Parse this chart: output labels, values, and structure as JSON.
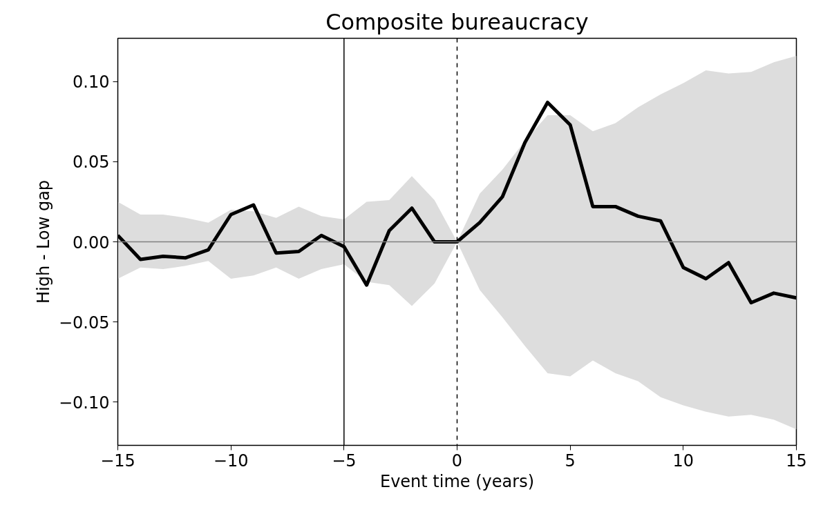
{
  "chart_data": {
    "type": "line",
    "title": "Composite bureaucracy",
    "xlabel": "Event time (years)",
    "ylabel": "High - Low gap",
    "x": [
      -15,
      -14,
      -13,
      -12,
      -11,
      -10,
      -9,
      -8,
      -7,
      -6,
      -5,
      -4,
      -3,
      -2,
      -1,
      0,
      1,
      2,
      3,
      4,
      5,
      6,
      7,
      8,
      9,
      10,
      11,
      12,
      13,
      14,
      15
    ],
    "series": [
      {
        "color": "#000000",
        "values": [
          0.004,
          -0.011,
          -0.009,
          -0.01,
          -0.005,
          0.017,
          0.023,
          -0.007,
          -0.006,
          0.004,
          -0.003,
          -0.027,
          0.007,
          0.021,
          0.0,
          0.0,
          0.012,
          0.028,
          0.062,
          0.087,
          0.073,
          0.022,
          0.022,
          0.016,
          0.013,
          -0.016,
          -0.023,
          -0.013,
          -0.038,
          -0.032,
          -0.035
        ],
        "upper": [
          0.025,
          0.017,
          0.017,
          0.015,
          0.012,
          0.02,
          0.019,
          0.015,
          0.022,
          0.016,
          0.014,
          0.025,
          0.026,
          0.041,
          0.026,
          0.0,
          0.03,
          0.045,
          0.063,
          0.079,
          0.079,
          0.069,
          0.074,
          0.084,
          0.092,
          0.099,
          0.107,
          0.105,
          0.106,
          0.112,
          0.116
        ],
        "lower": [
          -0.023,
          -0.016,
          -0.017,
          -0.015,
          -0.012,
          -0.023,
          -0.021,
          -0.016,
          -0.023,
          -0.017,
          -0.014,
          -0.025,
          -0.027,
          -0.04,
          -0.026,
          0.0,
          -0.03,
          -0.047,
          -0.065,
          -0.082,
          -0.084,
          -0.074,
          -0.082,
          -0.087,
          -0.097,
          -0.102,
          -0.106,
          -0.109,
          -0.108,
          -0.111,
          -0.117
        ]
      }
    ],
    "xlim": [
      -15,
      15
    ],
    "xticks": [
      {
        "value": -15,
        "label": "−15"
      },
      {
        "value": -10,
        "label": "−10"
      },
      {
        "value": -5,
        "label": "−5"
      },
      0,
      5,
      10,
      15
    ],
    "ylim": [
      -0.127,
      0.127
    ],
    "yticks": [
      {
        "value": -0.1,
        "label": "−0.10"
      },
      {
        "value": -0.05,
        "label": "−0.05"
      },
      {
        "value": 0,
        "label": "0.00"
      },
      {
        "value": 0.05,
        "label": "0.05"
      },
      {
        "value": 0.1,
        "label": "0.10"
      }
    ],
    "ref_lines": [
      {
        "axis": "x",
        "value": -5,
        "color": "#000000",
        "line_style": "solid"
      },
      {
        "axis": "x",
        "value": 0,
        "color": "#000000",
        "line_style": "dashed"
      },
      {
        "axis": "y",
        "value": 0,
        "color": "#808080",
        "line_style": "solid"
      }
    ],
    "grid": false,
    "marker": "none",
    "line_style": "solid"
  }
}
